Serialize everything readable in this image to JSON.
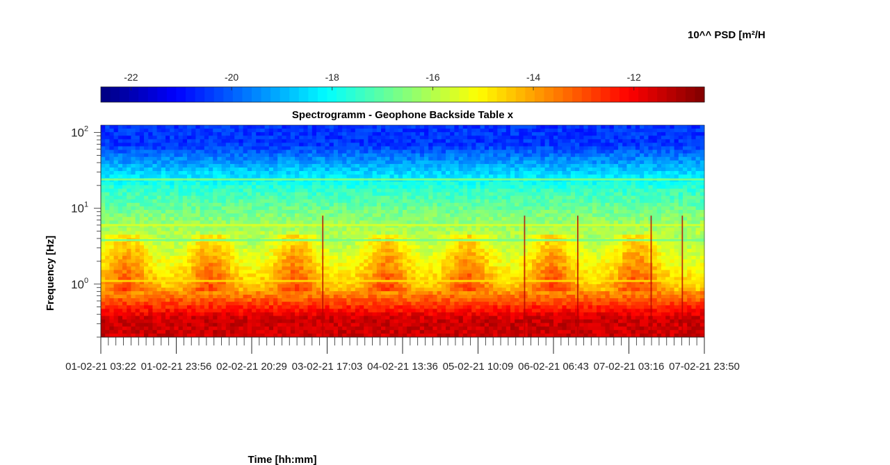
{
  "chart_data": {
    "type": "heatmap",
    "title": "Spectrogramm - Geophone Backside Table x",
    "xlabel": "Time [hh:mm]",
    "ylabel": "Frequency [Hz]",
    "colorbar_label": "10^^ PSD [m²/H",
    "colorbar_ticks": [
      -22,
      -20,
      -18,
      -16,
      -14,
      -12
    ],
    "clim": [
      -22.6,
      -10.6
    ],
    "colormap": "jet",
    "ylim": [
      0.2,
      125
    ],
    "yscale": "log",
    "ytick_labels": [
      {
        "base": "10",
        "exp": "0",
        "value": 1
      },
      {
        "base": "10",
        "exp": "1",
        "value": 10
      },
      {
        "base": "10",
        "exp": "2",
        "value": 100
      }
    ],
    "xtick_labels": [
      "01-02-21 03:22",
      "01-02-21 23:56",
      "02-02-21 20:29",
      "03-02-21 17:03",
      "04-02-21 13:36",
      "05-02-21 10:09",
      "06-02-21 06:43",
      "07-02-21 03:16",
      "07-02-21 23:50"
    ],
    "x_range_hours": [
      0,
      164.5
    ],
    "bands": [
      {
        "freq_from": 40,
        "freq_to": 125,
        "log_psd": -20.5
      },
      {
        "freq_from": 8,
        "freq_to": 40,
        "log_psd": -17.5
      },
      {
        "freq_from": 1.2,
        "freq_to": 8,
        "log_psd": -15.5
      },
      {
        "freq_from": 0.6,
        "freq_to": 1.2,
        "log_psd": -14
      },
      {
        "freq_from": 0.2,
        "freq_to": 0.6,
        "log_psd": -11.5
      }
    ],
    "lines": [
      {
        "freq": 24,
        "log_psd": -16.5
      },
      {
        "freq": 6,
        "log_psd": -15.5
      },
      {
        "freq": 3.8,
        "log_psd": -16.8
      },
      {
        "freq": 1.1,
        "log_psd": -14.8
      }
    ],
    "day_activity_peaks_hours": [
      7,
      30,
      53,
      78,
      100,
      123,
      146
    ],
    "transients_hours": [
      60.5,
      115.5,
      130,
      150,
      158.5
    ]
  }
}
